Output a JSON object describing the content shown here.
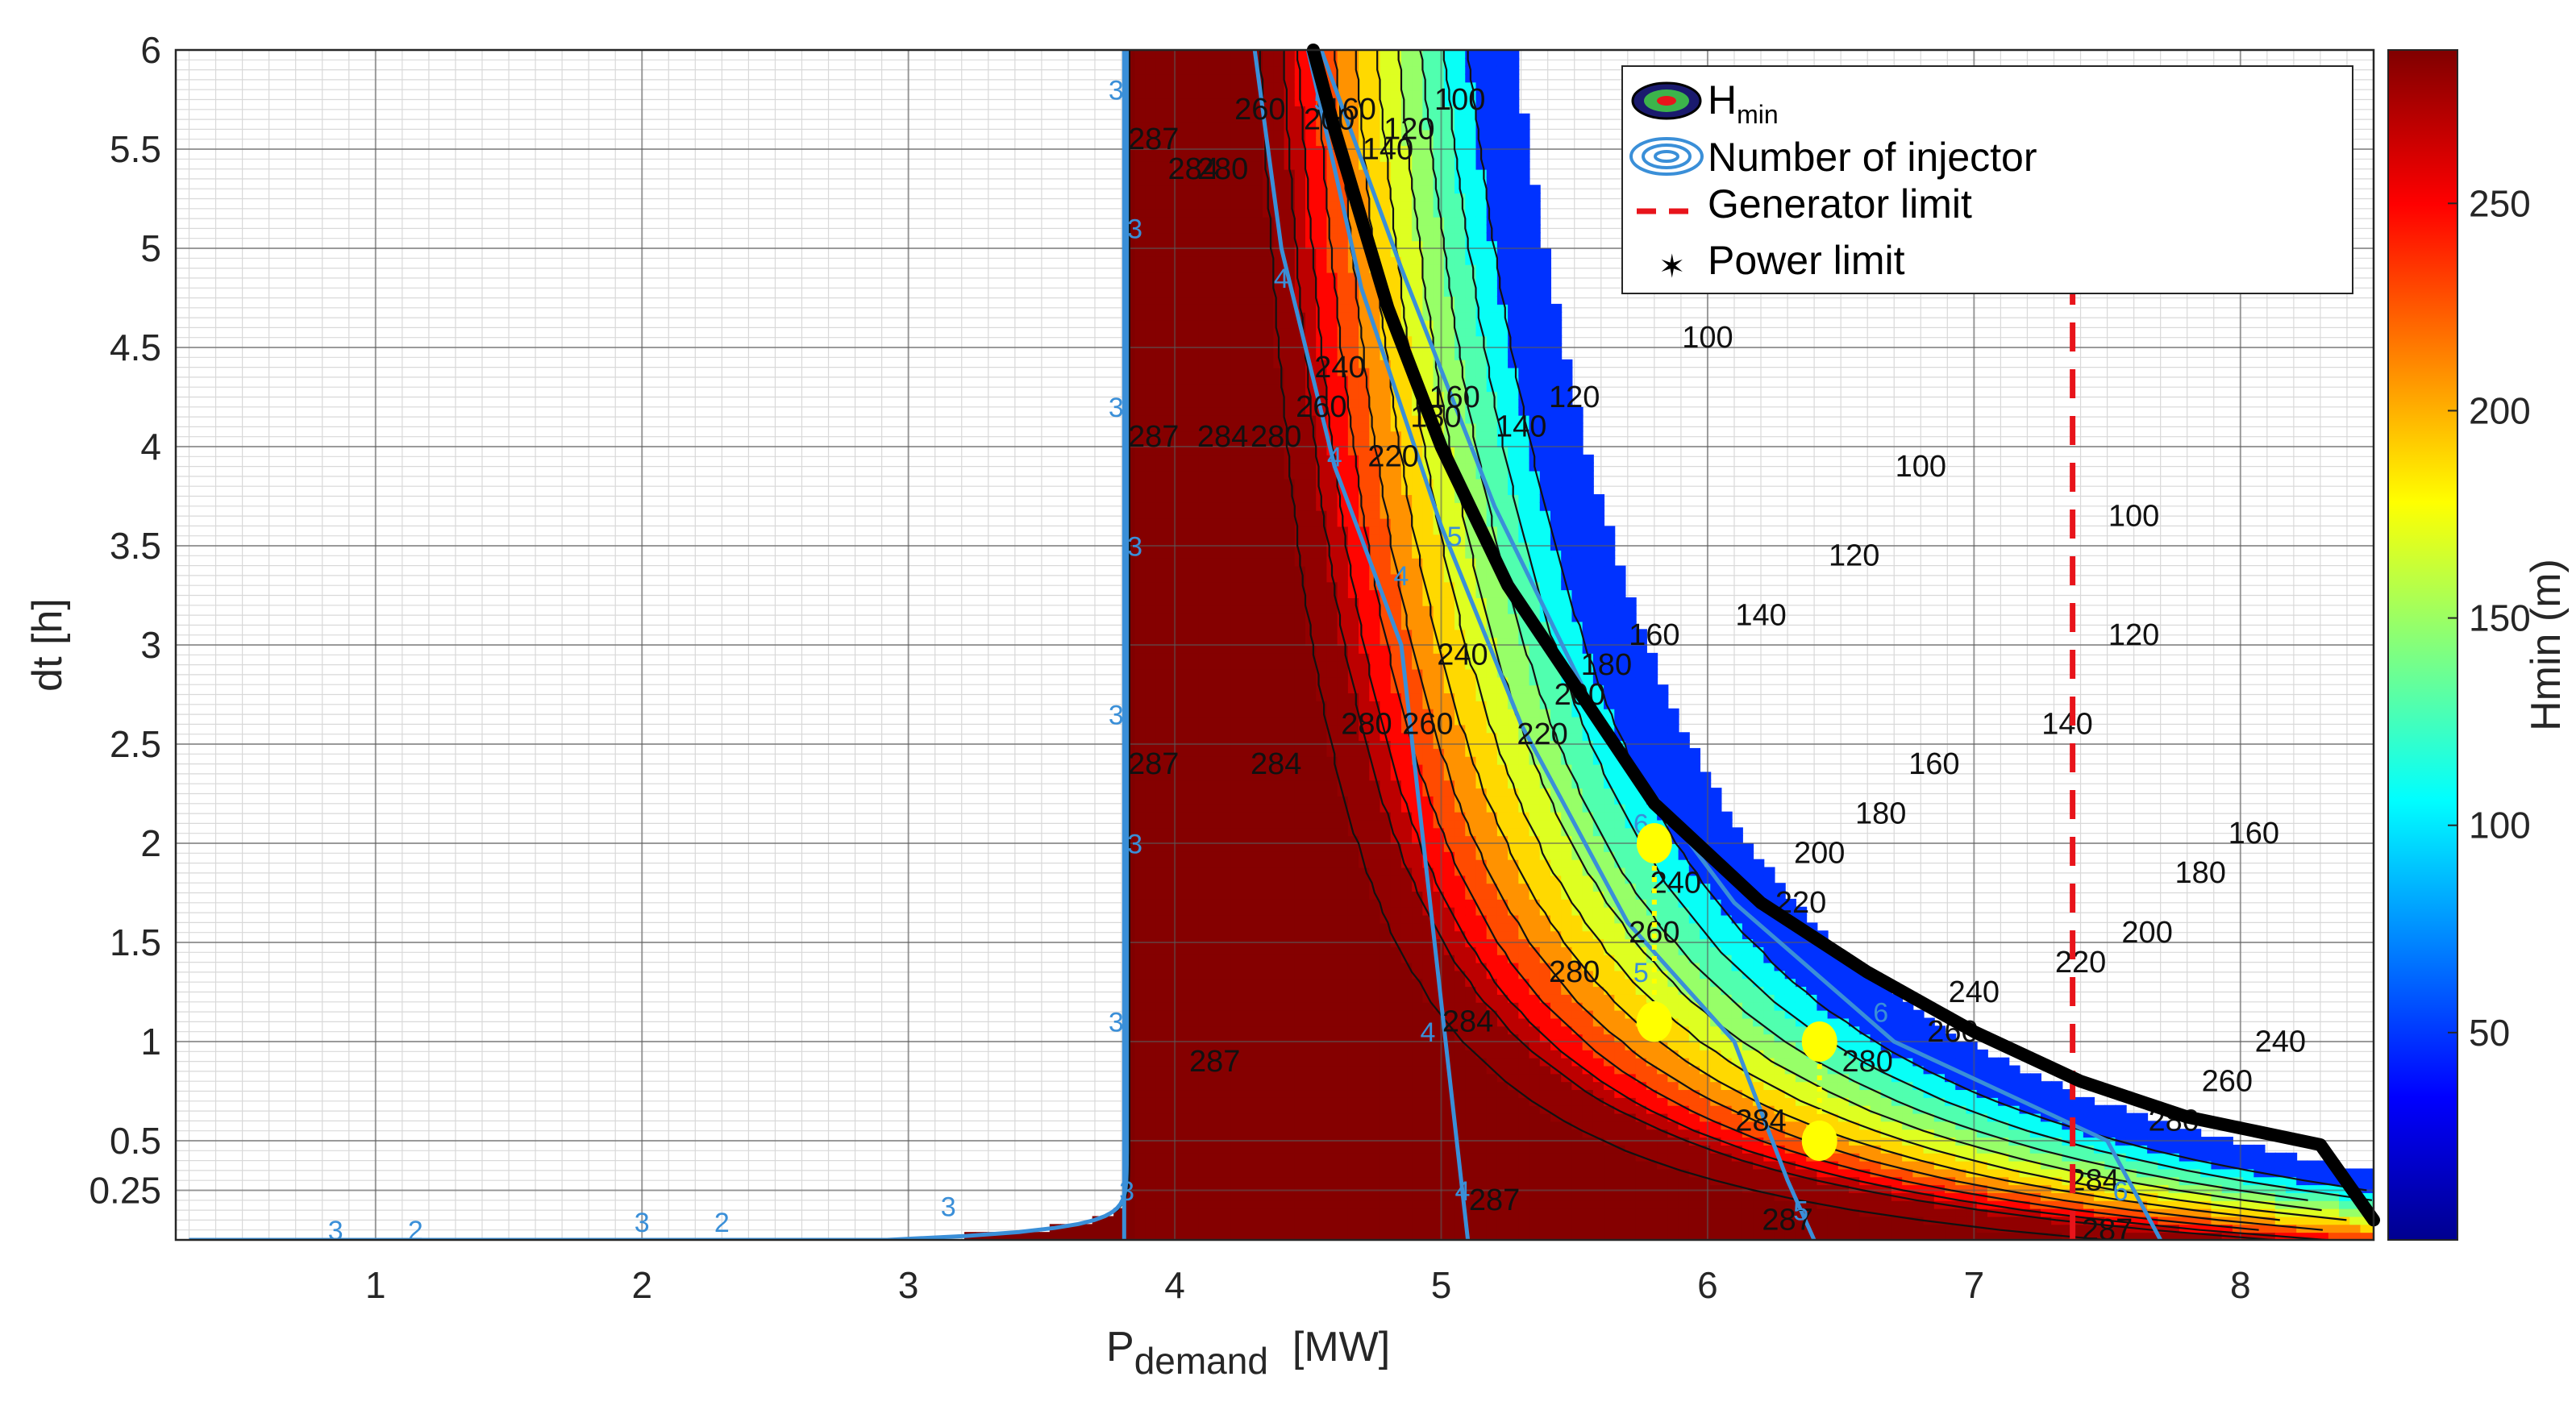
{
  "chart_data": {
    "type": "heatmap",
    "subtype": "filled-contour",
    "xlabel": {
      "main": "P",
      "sub": "demand",
      "unit": "[MW]"
    },
    "ylabel": "dt [h]",
    "colorbar_label": "Hmin (m)",
    "xlim": [
      0.25,
      8.5
    ],
    "ylim": [
      0,
      6
    ],
    "x_ticks": [
      1,
      2,
      3,
      4,
      5,
      6,
      7,
      8
    ],
    "y_ticks": [
      0.25,
      0.5,
      1,
      1.5,
      2,
      2.5,
      3,
      3.5,
      4,
      4.5,
      5,
      5.5,
      6
    ],
    "colorbar_range": [
      0,
      287
    ],
    "colorbar_ticks": [
      50,
      100,
      150,
      200,
      250
    ],
    "colormap": "jet",
    "grid": true,
    "minor_grid": true,
    "levels": [
      100,
      120,
      140,
      160,
      180,
      200,
      220,
      240,
      260,
      280,
      284,
      287
    ],
    "contour_labels": [
      {
        "value": "100",
        "x": 5.07,
        "y": 5.7
      },
      {
        "value": "120",
        "x": 4.88,
        "y": 5.55
      },
      {
        "value": "140",
        "x": 4.8,
        "y": 5.45
      },
      {
        "value": "160",
        "x": 4.66,
        "y": 5.65
      },
      {
        "value": "200",
        "x": 4.58,
        "y": 5.6
      },
      {
        "value": "260",
        "x": 4.32,
        "y": 5.65
      },
      {
        "value": "280",
        "x": 4.18,
        "y": 5.35
      },
      {
        "value": "284",
        "x": 4.07,
        "y": 5.35
      },
      {
        "value": "287",
        "x": 3.92,
        "y": 5.5
      },
      {
        "value": "100",
        "x": 6.0,
        "y": 4.5
      },
      {
        "value": "120",
        "x": 5.5,
        "y": 4.2
      },
      {
        "value": "140",
        "x": 5.3,
        "y": 4.05
      },
      {
        "value": "160",
        "x": 5.05,
        "y": 4.2
      },
      {
        "value": "180",
        "x": 4.98,
        "y": 4.1
      },
      {
        "value": "220",
        "x": 4.82,
        "y": 3.9
      },
      {
        "value": "240",
        "x": 4.62,
        "y": 4.35
      },
      {
        "value": "260",
        "x": 4.55,
        "y": 4.15
      },
      {
        "value": "280",
        "x": 4.38,
        "y": 4.0
      },
      {
        "value": "284",
        "x": 4.18,
        "y": 4.0
      },
      {
        "value": "287",
        "x": 3.92,
        "y": 4.0
      },
      {
        "value": "100",
        "x": 6.8,
        "y": 3.85
      },
      {
        "value": "100",
        "x": 7.6,
        "y": 3.6
      },
      {
        "value": "120",
        "x": 6.55,
        "y": 3.4
      },
      {
        "value": "140",
        "x": 6.2,
        "y": 3.1
      },
      {
        "value": "160",
        "x": 5.8,
        "y": 3.0
      },
      {
        "value": "180",
        "x": 5.62,
        "y": 2.85
      },
      {
        "value": "200",
        "x": 5.52,
        "y": 2.7
      },
      {
        "value": "220",
        "x": 5.38,
        "y": 2.5
      },
      {
        "value": "240",
        "x": 5.08,
        "y": 2.9
      },
      {
        "value": "260",
        "x": 4.95,
        "y": 2.55
      },
      {
        "value": "280",
        "x": 4.72,
        "y": 2.55
      },
      {
        "value": "284",
        "x": 4.38,
        "y": 2.35
      },
      {
        "value": "287",
        "x": 3.92,
        "y": 2.35
      },
      {
        "value": "120",
        "x": 7.6,
        "y": 3.0
      },
      {
        "value": "140",
        "x": 7.35,
        "y": 2.55
      },
      {
        "value": "160",
        "x": 6.85,
        "y": 2.35
      },
      {
        "value": "180",
        "x": 6.65,
        "y": 2.1
      },
      {
        "value": "200",
        "x": 6.42,
        "y": 1.9
      },
      {
        "value": "220",
        "x": 6.35,
        "y": 1.65
      },
      {
        "value": "240",
        "x": 5.88,
        "y": 1.75
      },
      {
        "value": "260",
        "x": 5.8,
        "y": 1.5
      },
      {
        "value": "280",
        "x": 5.5,
        "y": 1.3
      },
      {
        "value": "284",
        "x": 5.1,
        "y": 1.05
      },
      {
        "value": "287",
        "x": 4.15,
        "y": 0.85
      },
      {
        "value": "160",
        "x": 8.05,
        "y": 2.0
      },
      {
        "value": "180",
        "x": 7.85,
        "y": 1.8
      },
      {
        "value": "200",
        "x": 7.65,
        "y": 1.5
      },
      {
        "value": "220",
        "x": 7.4,
        "y": 1.35
      },
      {
        "value": "240",
        "x": 7.0,
        "y": 1.2
      },
      {
        "value": "260",
        "x": 6.92,
        "y": 1.0
      },
      {
        "value": "280",
        "x": 6.6,
        "y": 0.85
      },
      {
        "value": "284",
        "x": 6.2,
        "y": 0.55
      },
      {
        "value": "284",
        "x": 7.45,
        "y": 0.25
      },
      {
        "value": "287",
        "x": 6.3,
        "y": 0.05
      },
      {
        "value": "287",
        "x": 5.2,
        "y": 0.15
      },
      {
        "value": "287",
        "x": 7.5,
        "y": 0.0
      },
      {
        "value": "240",
        "x": 8.15,
        "y": 0.95
      },
      {
        "value": "260",
        "x": 7.95,
        "y": 0.75
      },
      {
        "value": "280",
        "x": 7.75,
        "y": 0.55
      }
    ],
    "injector_labels": [
      {
        "value": "3",
        "x": 3.78,
        "y": 5.75
      },
      {
        "value": "3",
        "x": 3.85,
        "y": 5.05
      },
      {
        "value": "3",
        "x": 3.78,
        "y": 4.15
      },
      {
        "value": "3",
        "x": 3.85,
        "y": 3.45
      },
      {
        "value": "3",
        "x": 3.78,
        "y": 2.6
      },
      {
        "value": "3",
        "x": 3.85,
        "y": 1.95
      },
      {
        "value": "3",
        "x": 3.78,
        "y": 1.05
      },
      {
        "value": "3",
        "x": 3.82,
        "y": 0.2
      },
      {
        "value": "3",
        "x": 3.15,
        "y": 0.12
      },
      {
        "value": "3",
        "x": 2.0,
        "y": 0.04
      },
      {
        "value": "2",
        "x": 2.3,
        "y": 0.04
      },
      {
        "value": "2",
        "x": 1.15,
        "y": 0.0
      },
      {
        "value": "3",
        "x": 0.85,
        "y": 0.0
      },
      {
        "value": "4",
        "x": 4.4,
        "y": 4.8
      },
      {
        "value": "5",
        "x": 4.55,
        "y": 5.7
      },
      {
        "value": "4",
        "x": 4.6,
        "y": 3.9
      },
      {
        "value": "4",
        "x": 4.85,
        "y": 3.3
      },
      {
        "value": "5",
        "x": 5.05,
        "y": 3.5
      },
      {
        "value": "4",
        "x": 4.95,
        "y": 1.0
      },
      {
        "value": "4",
        "x": 5.08,
        "y": 0.2
      },
      {
        "value": "5",
        "x": 5.75,
        "y": 1.3
      },
      {
        "value": "6",
        "x": 5.75,
        "y": 2.05
      },
      {
        "value": "5",
        "x": 6.35,
        "y": 0.1
      },
      {
        "value": "6",
        "x": 6.65,
        "y": 1.1
      },
      {
        "value": "6",
        "x": 7.55,
        "y": 0.2
      }
    ],
    "series": [
      {
        "name": "H",
        "name_sub": "min",
        "kind": "contour"
      },
      {
        "name": "Number of injector",
        "kind": "contour",
        "color": "#3a8fd8"
      },
      {
        "name": "Generator limit",
        "kind": "line",
        "style": "dashed",
        "color": "#e8141b",
        "x": [
          7.37,
          7.37
        ],
        "y": [
          0,
          4.95
        ]
      },
      {
        "name": "Power limit",
        "kind": "marker-line",
        "color": "#000000",
        "x": [
          4.52,
          4.6,
          4.8,
          5.0,
          5.25,
          5.5,
          5.8,
          6.2,
          6.6,
          7.0,
          7.4,
          7.8,
          8.3,
          8.5
        ],
        "y": [
          6.0,
          5.6,
          4.7,
          4.0,
          3.3,
          2.8,
          2.2,
          1.7,
          1.35,
          1.05,
          0.8,
          0.62,
          0.48,
          0.1
        ]
      }
    ],
    "markers": [
      {
        "x": 5.8,
        "y": 2.0,
        "color": "#ffff00"
      },
      {
        "x": 5.8,
        "y": 1.1,
        "color": "#ffff00"
      },
      {
        "x": 6.42,
        "y": 1.0,
        "color": "#ffff00"
      },
      {
        "x": 6.42,
        "y": 0.5,
        "color": "#ffff00"
      }
    ],
    "legend_position": "top-right"
  }
}
